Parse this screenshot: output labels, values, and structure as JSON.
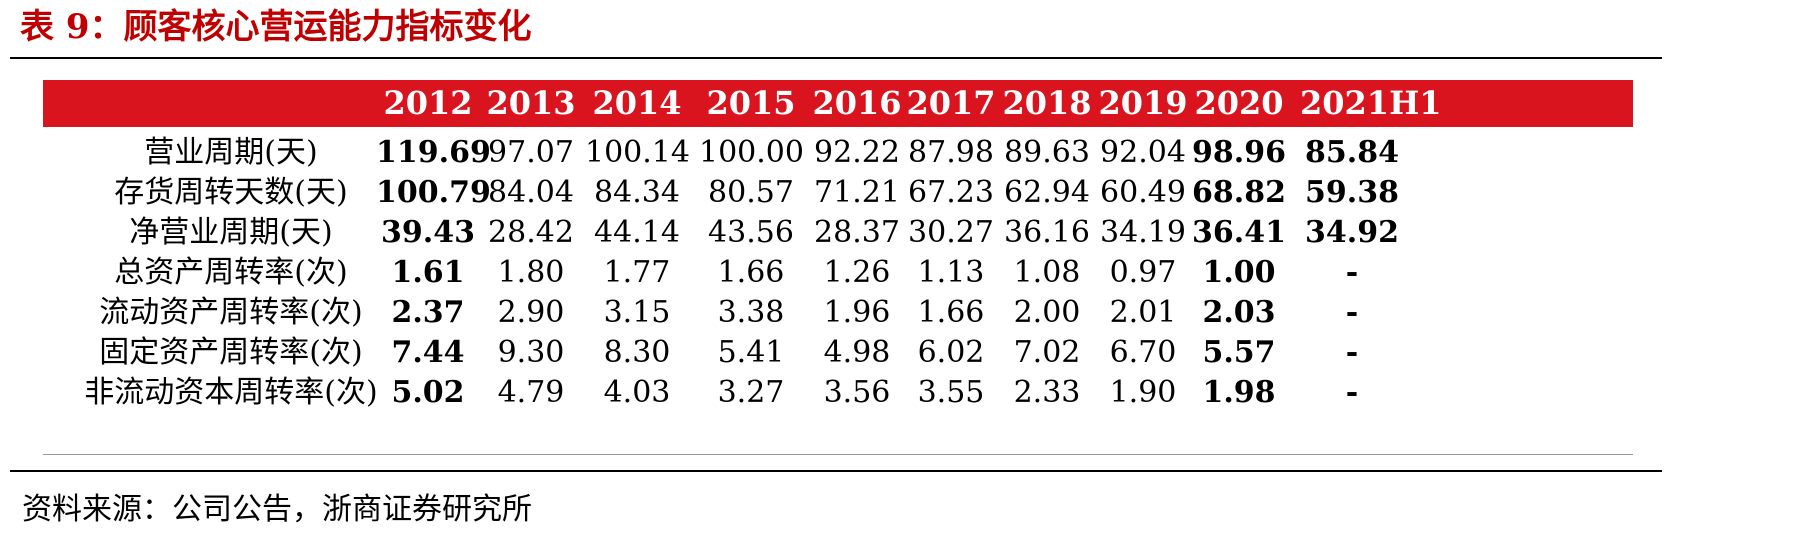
{
  "caption": "表 9：顾客核心营运能力指标变化",
  "source": "资料来源：公司公告，浙商证券研究所",
  "colors": {
    "caption": "#c00000",
    "header_bg": "#d9141e",
    "header_text": "#ffffff"
  },
  "table": {
    "columns": [
      "2012",
      "2013",
      "2014",
      "2015",
      "2016",
      "2017",
      "2018",
      "2019",
      "2020",
      "2021H1"
    ],
    "rows": [
      {
        "label": "营业周期(天)",
        "values": [
          "119.69",
          "97.07",
          "100.14",
          "100.00",
          "92.22",
          "87.98",
          "89.63",
          "92.04",
          "98.96",
          "85.84"
        ]
      },
      {
        "label": "存货周转天数(天)",
        "values": [
          "100.79",
          "84.04",
          "84.34",
          "80.57",
          "71.21",
          "67.23",
          "62.94",
          "60.49",
          "68.82",
          "59.38"
        ]
      },
      {
        "label": "净营业周期(天)",
        "values": [
          "39.43",
          "28.42",
          "44.14",
          "43.56",
          "28.37",
          "30.27",
          "36.16",
          "34.19",
          "36.41",
          "34.92"
        ]
      },
      {
        "label": "总资产周转率(次)",
        "values": [
          "1.61",
          "1.80",
          "1.77",
          "1.66",
          "1.26",
          "1.13",
          "1.08",
          "0.97",
          "1.00",
          "-"
        ]
      },
      {
        "label": "流动资产周转率(次)",
        "values": [
          "2.37",
          "2.90",
          "3.15",
          "3.38",
          "1.96",
          "1.66",
          "2.00",
          "2.01",
          "2.03",
          "-"
        ]
      },
      {
        "label": "固定资产周转率(次)",
        "values": [
          "7.44",
          "9.30",
          "8.30",
          "5.41",
          "4.98",
          "6.02",
          "7.02",
          "6.70",
          "5.57",
          "-"
        ]
      },
      {
        "label": "非流动资本周转率(次)",
        "values": [
          "5.02",
          "4.79",
          "4.03",
          "3.27",
          "3.56",
          "3.55",
          "2.33",
          "1.90",
          "1.98",
          "-"
        ]
      }
    ]
  }
}
